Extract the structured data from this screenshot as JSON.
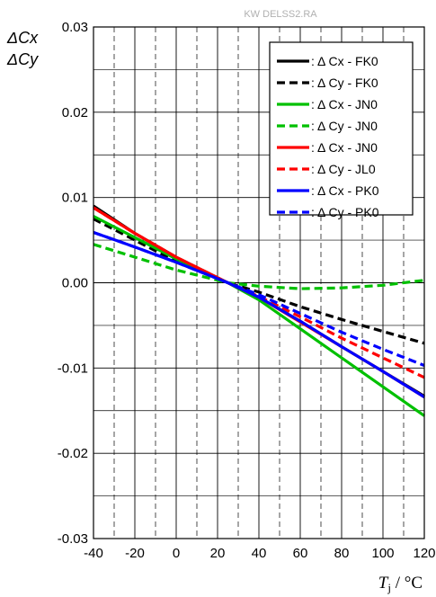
{
  "watermark": "KW DELSS2.RA",
  "chart_data": {
    "type": "line",
    "ylabel_lines": [
      "ΔCx",
      "ΔCy"
    ],
    "xlabel_main": "T",
    "xlabel_sub": "j",
    "xlabel_unit": " / °C",
    "xlim": [
      -40,
      120
    ],
    "ylim": [
      -0.03,
      0.03
    ],
    "x_ticks": [
      -40,
      -20,
      0,
      20,
      40,
      60,
      80,
      100,
      120
    ],
    "x_tick_labels": [
      "-40",
      "-20",
      "0",
      "20",
      "40",
      "60",
      "80",
      "100",
      "120"
    ],
    "x_minor_step": 10,
    "y_ticks": [
      -0.03,
      -0.02,
      -0.01,
      0.0,
      0.01,
      0.02,
      0.03
    ],
    "y_tick_labels": [
      "-0.03",
      "-0.02",
      "-0.01",
      "0.00",
      "0.01",
      "0.02",
      "0.03"
    ],
    "y_minor_step": 0.005,
    "grid": true,
    "legend_position": "top-right",
    "series": [
      {
        "name": ": Δ Cx - FK0",
        "color": "#000000",
        "dash": false,
        "x": [
          -40,
          -20,
          0,
          25,
          40,
          60,
          80,
          100,
          120
        ],
        "y": [
          0.009,
          0.0058,
          0.003,
          0.0,
          -0.0017,
          -0.0045,
          -0.0075,
          -0.0104,
          -0.0133
        ]
      },
      {
        "name": ": Δ Cy - FK0",
        "color": "#000000",
        "dash": true,
        "x": [
          -40,
          -20,
          0,
          25,
          40,
          60,
          80,
          100,
          120
        ],
        "y": [
          0.0075,
          0.005,
          0.0025,
          0.0,
          -0.0011,
          -0.0028,
          -0.0043,
          -0.0057,
          -0.0071
        ]
      },
      {
        "name": ": Δ Cx - JN0",
        "color": "#00c000",
        "dash": false,
        "x": [
          -40,
          -20,
          0,
          25,
          40,
          60,
          80,
          100,
          120
        ],
        "y": [
          0.0078,
          0.0053,
          0.0028,
          0.0,
          -0.002,
          -0.0054,
          -0.0088,
          -0.0122,
          -0.0156
        ]
      },
      {
        "name": ": Δ Cy - JN0",
        "color": "#00c000",
        "dash": true,
        "x": [
          -40,
          -20,
          0,
          25,
          40,
          60,
          80,
          100,
          120
        ],
        "y": [
          0.0045,
          0.003,
          0.0015,
          0.0,
          -0.0004,
          -0.0007,
          -0.0006,
          -0.0003,
          0.0003
        ]
      },
      {
        "name": ": Δ Cx - JN0",
        "color": "#ff0000",
        "dash": false,
        "x": [
          -40,
          -20,
          0,
          25,
          40,
          60,
          80,
          100,
          120
        ],
        "y": [
          0.0088,
          0.0058,
          0.003,
          0.0,
          -0.0017,
          -0.0046,
          -0.0075,
          -0.0104,
          -0.0134
        ]
      },
      {
        "name": ": Δ Cy - JL0",
        "color": "#ff0000",
        "dash": true,
        "x": [
          -40,
          -20,
          0,
          25,
          40,
          60,
          80,
          100,
          120
        ],
        "y": [
          0.0088,
          0.0058,
          0.003,
          0.0,
          -0.0016,
          -0.004,
          -0.0065,
          -0.0088,
          -0.0111
        ]
      },
      {
        "name": ": Δ Cx - PK0",
        "color": "#0000ff",
        "dash": false,
        "x": [
          -40,
          -20,
          0,
          25,
          40,
          60,
          80,
          100,
          120
        ],
        "y": [
          0.0059,
          0.0042,
          0.0024,
          0.0,
          -0.0017,
          -0.0045,
          -0.0075,
          -0.0104,
          -0.0134
        ]
      },
      {
        "name": ": Δ Cy - PK0",
        "color": "#0000ff",
        "dash": true,
        "x": [
          -40,
          -20,
          0,
          25,
          40,
          60,
          80,
          100,
          120
        ],
        "y": [
          0.0059,
          0.0042,
          0.0024,
          0.0,
          -0.0014,
          -0.0036,
          -0.0058,
          -0.0078,
          -0.0097
        ]
      }
    ]
  }
}
